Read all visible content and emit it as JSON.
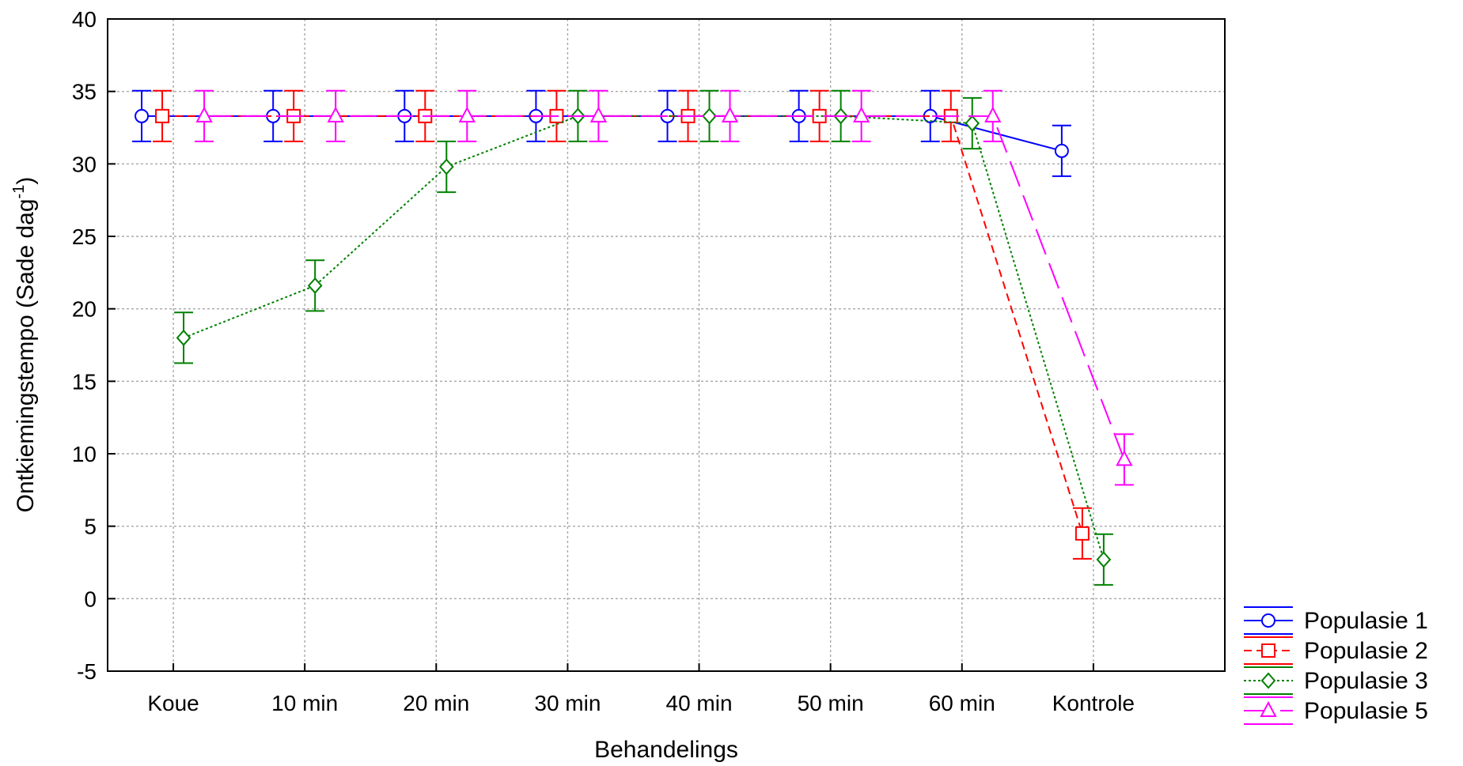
{
  "chart_data": {
    "type": "line",
    "title": "",
    "xlabel": "Behandelings",
    "ylabel": {
      "text": "Ontkiemingstempo (Sade dag",
      "superscript": "-1",
      "suffix": ")"
    },
    "categories": [
      "Koue",
      "10 min",
      "20 min",
      "30 min",
      "40 min",
      "50 min",
      "60 min",
      "Kontrole"
    ],
    "ylim": [
      -5,
      40
    ],
    "yticks": [
      "-5",
      "0",
      "5",
      "10",
      "15",
      "20",
      "25",
      "30",
      "35",
      "40"
    ],
    "grid": true,
    "legend_position": "bottom-right, outside plot",
    "error_bars": true,
    "series": [
      {
        "name": "Populasie 1",
        "color": "#0000ff",
        "line_style": "solid",
        "marker": "circle",
        "values": [
          33.3,
          33.3,
          33.3,
          33.3,
          33.3,
          33.3,
          33.3,
          30.9
        ],
        "errors": [
          1.75,
          1.75,
          1.75,
          1.75,
          1.75,
          1.75,
          1.75,
          1.75
        ]
      },
      {
        "name": "Populasie 2",
        "color": "#ff0000",
        "line_style": "dashed",
        "marker": "square",
        "values": [
          33.3,
          33.3,
          33.3,
          33.3,
          33.3,
          33.3,
          33.3,
          4.5
        ],
        "errors": [
          1.75,
          1.75,
          1.75,
          1.75,
          1.75,
          1.75,
          1.75,
          1.75
        ]
      },
      {
        "name": "Populasie 3",
        "color": "#008000",
        "line_style": "dotted",
        "marker": "diamond",
        "values": [
          18.0,
          21.6,
          29.8,
          33.3,
          33.3,
          33.3,
          32.8,
          2.7
        ],
        "errors": [
          1.75,
          1.75,
          1.75,
          1.75,
          1.75,
          1.75,
          1.75,
          1.75
        ]
      },
      {
        "name": "Populasie 5",
        "color": "#ff00ff",
        "line_style": "long-dash",
        "marker": "triangle",
        "values": [
          33.3,
          33.3,
          33.3,
          33.3,
          33.3,
          33.3,
          33.3,
          9.6
        ],
        "errors": [
          1.75,
          1.75,
          1.75,
          1.75,
          1.75,
          1.75,
          1.75,
          1.75
        ]
      }
    ]
  }
}
